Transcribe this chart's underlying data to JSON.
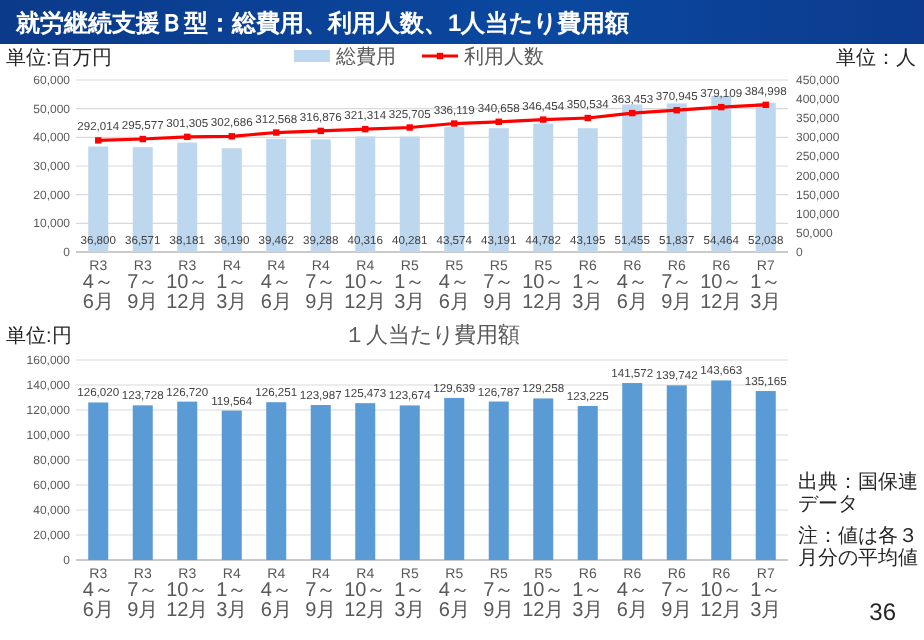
{
  "chart_data": [
    {
      "type": "bar",
      "title": "就労継続支援Ｂ型：総費用、利用人数、1人当たり費用額",
      "ylabel": "単位:百万円",
      "y2label": "単位：人",
      "legend": "top",
      "grid": "y",
      "categories": [
        "R3\n4～6月",
        "R3\n7～9月",
        "R3\n10～12月",
        "R4\n1～3月",
        "R4\n4～6月",
        "R4\n7～9月",
        "R4\n10～12月",
        "R5\n1～3月",
        "R5\n4～6月",
        "R5\n7～9月",
        "R5\n10～12月",
        "R6\n1～3月",
        "R6\n4～6月",
        "R6\n7～9月",
        "R6\n10～12月",
        "R7\n1～3月"
      ],
      "ylim": [
        0,
        60000
      ],
      "yticks": [
        {
          "value": 0,
          "label": "0"
        },
        {
          "value": 10000,
          "label": "10,000"
        },
        {
          "value": 20000,
          "label": "20,000"
        },
        {
          "value": 30000,
          "label": "30,000"
        },
        {
          "value": 40000,
          "label": "40,000"
        },
        {
          "value": 50000,
          "label": "50,000"
        },
        {
          "value": 60000,
          "label": "60,000"
        }
      ],
      "y2lim": [
        0,
        450000
      ],
      "y2ticks": [
        {
          "value": 0,
          "label": "0"
        },
        {
          "value": 50000,
          "label": "50,000"
        },
        {
          "value": 100000,
          "label": "100,000"
        },
        {
          "value": 150000,
          "label": "150,000"
        },
        {
          "value": 200000,
          "label": "200,000"
        },
        {
          "value": 250000,
          "label": "250,000"
        },
        {
          "value": 300000,
          "label": "300,000"
        },
        {
          "value": 350000,
          "label": "350,000"
        },
        {
          "value": 400000,
          "label": "400,000"
        },
        {
          "value": 450000,
          "label": "450,000"
        }
      ],
      "series": [
        {
          "name": "総費用",
          "color": "#bdd7ee",
          "values": [
            36800,
            36571,
            38181,
            36190,
            39462,
            39288,
            40316,
            40281,
            43574,
            43191,
            44782,
            43195,
            51455,
            51837,
            54464,
            52038
          ],
          "value_labels": [
            "36,800",
            "36,571",
            "38,181",
            "36,190",
            "39,462",
            "39,288",
            "40,316",
            "40,281",
            "43,574",
            "43,191",
            "44,782",
            "43,195",
            "51,455",
            "51,837",
            "54,464",
            "52,038"
          ]
        },
        {
          "name": "利用人数",
          "type": "line",
          "axis": "y2",
          "color": "#ff0000",
          "marker": "square",
          "values": [
            292014,
            295577,
            301305,
            302686,
            312568,
            316876,
            321314,
            325705,
            336119,
            340658,
            346454,
            350534,
            363453,
            370945,
            379109,
            384998
          ],
          "value_labels": [
            "292,014",
            "295,577",
            "301,305",
            "302,686",
            "312,568",
            "316,876",
            "321,314",
            "325,705",
            "336,119",
            "340,658",
            "346,454",
            "350,534",
            "363,453",
            "370,945",
            "379,109",
            "384,998"
          ]
        }
      ]
    },
    {
      "type": "bar",
      "title": "１人当たり費用額",
      "ylabel": "単位:円",
      "grid": "y",
      "categories": [
        "R3\n4～6月",
        "R3\n7～9月",
        "R3\n10～12月",
        "R4\n1～3月",
        "R4\n4～6月",
        "R4\n7～9月",
        "R4\n10～12月",
        "R5\n1～3月",
        "R5\n4～6月",
        "R5\n7～9月",
        "R5\n10～12月",
        "R6\n1～3月",
        "R6\n4～6月",
        "R6\n7～9月",
        "R6\n10～12月",
        "R7\n1～3月"
      ],
      "ylim": [
        0,
        160000
      ],
      "yticks": [
        {
          "value": 0,
          "label": "0"
        },
        {
          "value": 20000,
          "label": "20,000"
        },
        {
          "value": 40000,
          "label": "40,000"
        },
        {
          "value": 60000,
          "label": "60,000"
        },
        {
          "value": 80000,
          "label": "80,000"
        },
        {
          "value": 100000,
          "label": "100,000"
        },
        {
          "value": 120000,
          "label": "120,000"
        },
        {
          "value": 140000,
          "label": "140,000"
        },
        {
          "value": 160000,
          "label": "160,000"
        }
      ],
      "series": [
        {
          "color": "#5b9bd5",
          "values": [
            126020,
            123728,
            126720,
            119564,
            126251,
            123987,
            125473,
            123674,
            129639,
            126787,
            129258,
            123225,
            141572,
            139742,
            143663,
            135165
          ],
          "value_labels": [
            "126,020",
            "123,728",
            "126,720",
            "119,564",
            "126,251",
            "123,987",
            "125,473",
            "123,674",
            "129,639",
            "126,787",
            "129,258",
            "123,225",
            "141,572",
            "139,742",
            "143,663",
            "135,165"
          ]
        }
      ],
      "annotations": [
        "出典：国保連データ",
        "注：値は各３月分の平均値",
        "36"
      ]
    }
  ]
}
